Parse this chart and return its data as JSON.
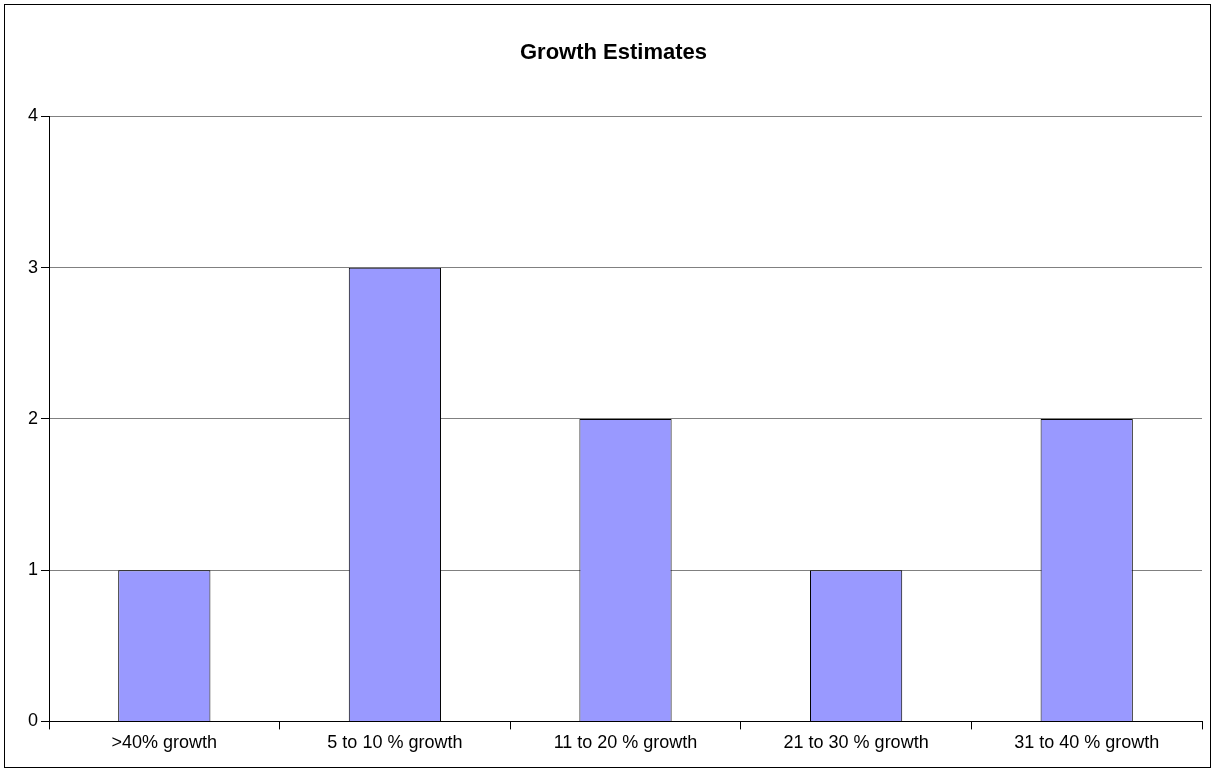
{
  "chart_data": {
    "type": "bar",
    "title": "Growth Estimates",
    "categories": [
      ">40% growth",
      "5 to 10 % growth",
      "11 to 20 % growth",
      "21 to 30 % growth",
      "31 to 40 % growth"
    ],
    "values": [
      1,
      3,
      2,
      1,
      2
    ],
    "color": "#9999ff",
    "ylim": [
      0,
      4
    ],
    "yticks": [
      0,
      1,
      2,
      3,
      4
    ],
    "grid": "y",
    "legend": false
  }
}
